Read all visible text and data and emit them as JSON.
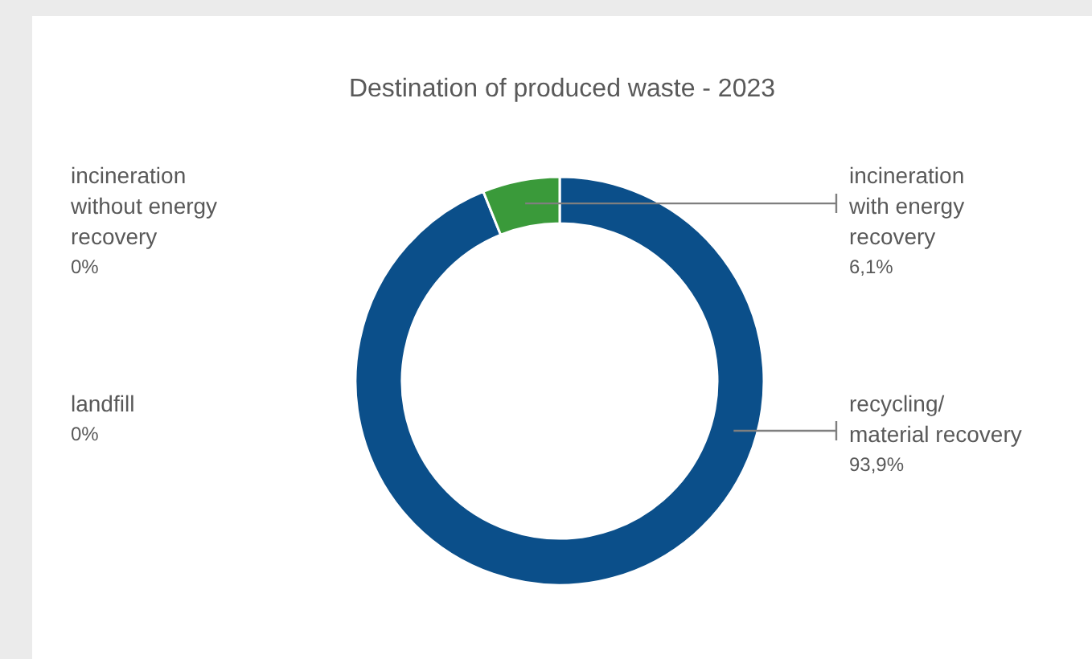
{
  "chart_data": {
    "type": "donut",
    "title": "Destination of produced waste - 2023",
    "categories": [
      "recycling/ material recovery",
      "incineration with energy recovery",
      "incineration without energy recovery",
      "landfill"
    ],
    "values": [
      93.9,
      6.1,
      0,
      0
    ],
    "colors": [
      "#0b4f8a",
      "#3a9a3a",
      "#8c8c8c",
      "#c0c0c0"
    ],
    "value_labels": [
      "93,9%",
      "6,1%",
      "0%",
      "0%"
    ]
  }
}
